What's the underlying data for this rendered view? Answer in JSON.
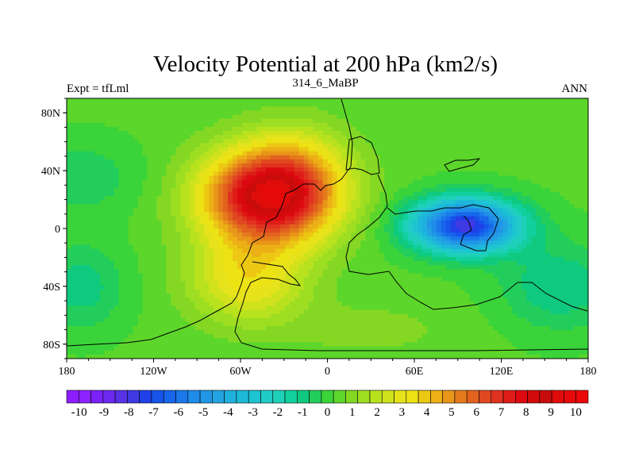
{
  "chart_data": {
    "type": "heatmap",
    "title": "Velocity Potential at 200 hPa (km2/s)",
    "subtitle_left": "Expt = tfLml",
    "subtitle_center": "314_6_MaBP",
    "subtitle_right": "ANN",
    "x_range": [
      -180,
      180
    ],
    "y_range": [
      -90,
      90
    ],
    "x_ticks": [
      {
        "value": -180,
        "label": "180"
      },
      {
        "value": -120,
        "label": "120W"
      },
      {
        "value": -60,
        "label": "60W"
      },
      {
        "value": 0,
        "label": "0"
      },
      {
        "value": 60,
        "label": "60E"
      },
      {
        "value": 120,
        "label": "120E"
      },
      {
        "value": 180,
        "label": "180"
      }
    ],
    "y_ticks": [
      {
        "value": 80,
        "label": "80N"
      },
      {
        "value": 40,
        "label": "40N"
      },
      {
        "value": 0,
        "label": "0"
      },
      {
        "value": -40,
        "label": "40S"
      },
      {
        "value": -80,
        "label": "80S"
      }
    ],
    "field_features": [
      {
        "name": "positive-maximum",
        "lon": -40,
        "lat": 22,
        "value": 9.2
      },
      {
        "name": "negative-minimum",
        "lon": 95,
        "lat": 2,
        "value": -7.4
      }
    ],
    "colorbar": {
      "min": -10.5,
      "max": 10.5,
      "step": 0.5,
      "labels": [
        "-10",
        "-9",
        "-8",
        "-7",
        "-6",
        "-5",
        "-4",
        "-3",
        "-2",
        "-1",
        "0",
        "1",
        "2",
        "3",
        "4",
        "5",
        "6",
        "7",
        "8",
        "9",
        "10"
      ],
      "colors": [
        "#8c1eff",
        "#8b24ff",
        "#7a22f5",
        "#6b2aee",
        "#5a32e6",
        "#3f3ae4",
        "#2040e8",
        "#1654ea",
        "#1866ea",
        "#1b78ea",
        "#1f8bea",
        "#2197e6",
        "#23a3e2",
        "#1fb0de",
        "#1cbad8",
        "#1ec4d2",
        "#22ccc6",
        "#1fd0b8",
        "#12cf9e",
        "#0fca7e",
        "#23cd5c",
        "#3ad43a",
        "#5cd62a",
        "#84d824",
        "#9ede22",
        "#b8e21e",
        "#cfe21c",
        "#e6e21c",
        "#ece214",
        "#ecc814",
        "#ecb016",
        "#e8961a",
        "#e47a1c",
        "#e2621e",
        "#e04820",
        "#e03220",
        "#de1c18",
        "#dc0a10",
        "#d20a0a",
        "#c80c0c",
        "#e00c0c",
        "#e60a0a",
        "#ea0808"
      ]
    }
  }
}
